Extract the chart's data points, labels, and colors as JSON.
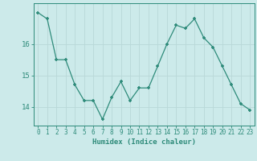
{
  "x": [
    0,
    1,
    2,
    3,
    4,
    5,
    6,
    7,
    8,
    9,
    10,
    11,
    12,
    13,
    14,
    15,
    16,
    17,
    18,
    19,
    20,
    21,
    22,
    23
  ],
  "y": [
    17.0,
    16.8,
    15.5,
    15.5,
    14.7,
    14.2,
    14.2,
    13.6,
    14.3,
    14.8,
    14.2,
    14.6,
    14.6,
    15.3,
    16.0,
    16.6,
    16.5,
    16.8,
    16.2,
    15.9,
    15.3,
    14.7,
    14.1,
    13.9
  ],
  "xlabel": "Humidex (Indice chaleur)",
  "ylim": [
    13.4,
    17.3
  ],
  "yticks": [
    14,
    15,
    16
  ],
  "xticks": [
    0,
    1,
    2,
    3,
    4,
    5,
    6,
    7,
    8,
    9,
    10,
    11,
    12,
    13,
    14,
    15,
    16,
    17,
    18,
    19,
    20,
    21,
    22,
    23
  ],
  "line_color": "#2e8b7a",
  "marker_color": "#2e8b7a",
  "bg_color": "#cceaea",
  "grid_color": "#b8d8d8",
  "axis_color": "#2e8b7a",
  "label_color": "#2e8b7a",
  "tick_color": "#2e8b7a",
  "xlabel_fontsize": 6.5,
  "tick_fontsize": 5.5,
  "ytick_fontsize": 6.5
}
